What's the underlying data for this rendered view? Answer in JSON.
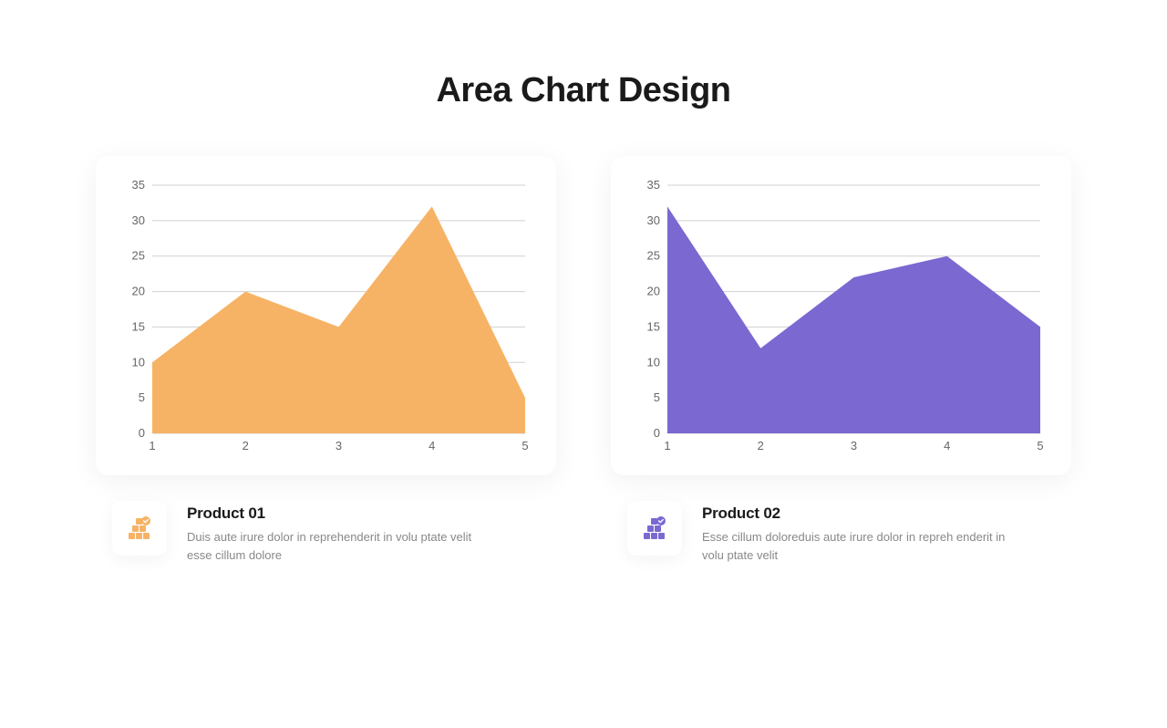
{
  "title": "Area Chart Design",
  "charts": [
    {
      "type": "area",
      "x_values": [
        1,
        2,
        3,
        4,
        5
      ],
      "y_values": [
        10,
        20,
        15,
        32,
        5
      ],
      "fill_color": "#f6b365",
      "ylim": [
        0,
        35
      ],
      "ytick_step": 5,
      "y_ticks": [
        0,
        5,
        10,
        15,
        20,
        25,
        30,
        35
      ],
      "x_ticks": [
        1,
        2,
        3,
        4,
        5
      ],
      "background_color": "#ffffff",
      "grid_color": "#d0d0d0",
      "axis_label_color": "#666666",
      "axis_label_fontsize": 13
    },
    {
      "type": "area",
      "x_values": [
        1,
        2,
        3,
        4,
        5
      ],
      "y_values": [
        32,
        12,
        22,
        25,
        15
      ],
      "fill_color": "#7b68d1",
      "ylim": [
        0,
        35
      ],
      "ytick_step": 5,
      "y_ticks": [
        0,
        5,
        10,
        15,
        20,
        25,
        30,
        35
      ],
      "x_ticks": [
        1,
        2,
        3,
        4,
        5
      ],
      "background_color": "#ffffff",
      "grid_color": "#d0d0d0",
      "axis_label_color": "#666666",
      "axis_label_fontsize": 13
    }
  ],
  "legends": [
    {
      "title": "Product 01",
      "description": "Duis aute irure dolor in reprehenderit in volu ptate velit esse cillum dolore",
      "icon_color": "#f6b365"
    },
    {
      "title": "Product 02",
      "description": "Esse cillum doloreduis aute irure dolor in repreh enderit in volu ptate velit",
      "icon_color": "#7b68d1"
    }
  ],
  "card_background": "#ffffff",
  "card_shadow": "rgba(0,0,0,0.06)",
  "title_color": "#1a1a1a",
  "title_fontsize": 38,
  "legend_title_fontsize": 17,
  "legend_desc_color": "#888888"
}
